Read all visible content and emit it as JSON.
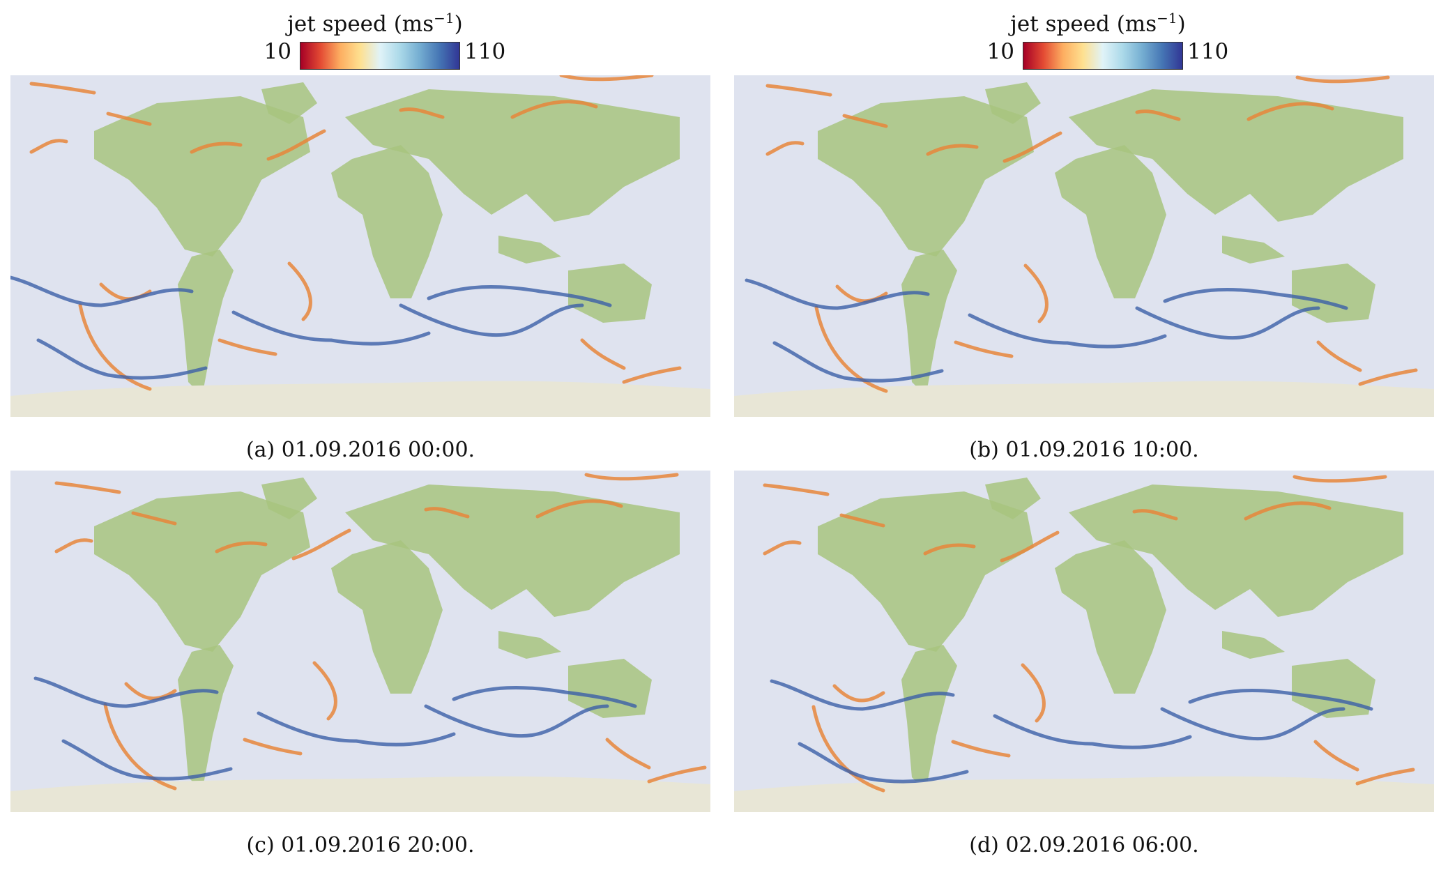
{
  "colorbars": [
    {
      "title": "jet speed (ms",
      "title_exp": "−1",
      "title_close": ")",
      "min": "10",
      "max": "110"
    },
    {
      "title": "jet speed (ms",
      "title_exp": "−1",
      "title_close": ")",
      "min": "10",
      "max": "110"
    }
  ],
  "colormap": [
    "#a50026",
    "#e34a33",
    "#fdae61",
    "#fee090",
    "#e0f3f8",
    "#abd9e9",
    "#74add1",
    "#4575b4",
    "#313695"
  ],
  "colors": {
    "ocean": "#dfe3ef",
    "land": "#a8c47f",
    "ice": "#e8e6d6",
    "jet_slow": "#e8863b",
    "jet_fast": "#3b5fa8"
  },
  "panels": [
    {
      "caption": "(a) 01.09.2016 00:00."
    },
    {
      "caption": "(b) 01.09.2016 10:00."
    },
    {
      "caption": "(c) 01.09.2016 20:00."
    },
    {
      "caption": "(d) 02.09.2016 06:00."
    }
  ]
}
